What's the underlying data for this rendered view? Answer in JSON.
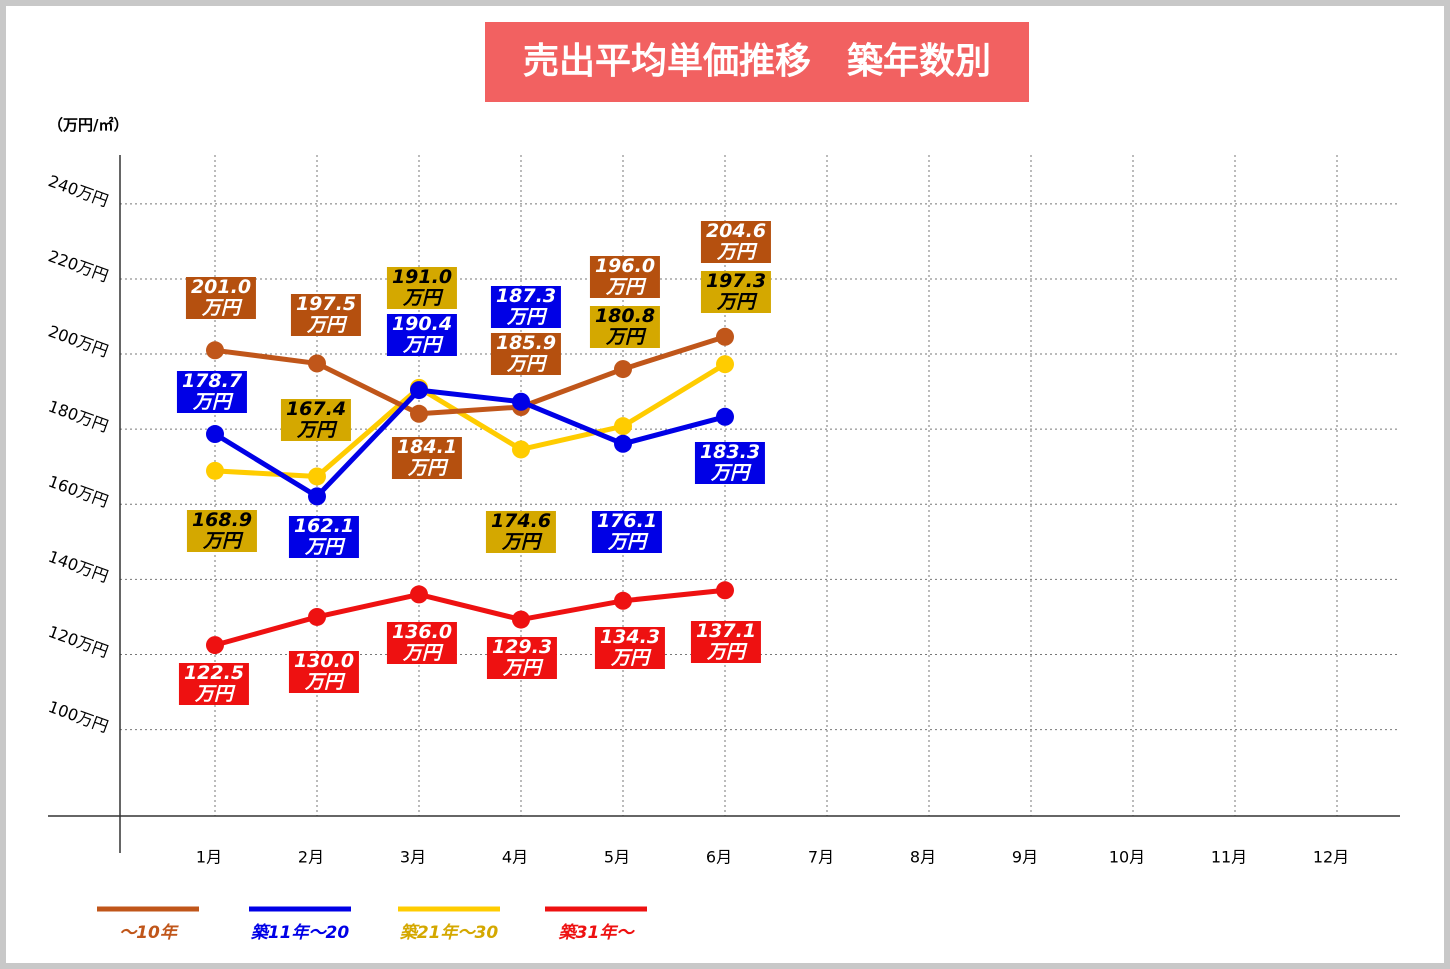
{
  "chart_data": {
    "type": "line",
    "title": "売出平均単価推移　築年数別",
    "y_label": "（万円/㎡）",
    "categories": [
      "1月",
      "2月",
      "3月",
      "4月",
      "5月",
      "6月",
      "7月",
      "8月",
      "9月",
      "10月",
      "11月",
      "12月"
    ],
    "series": [
      {
        "name": "～10年",
        "color": "#c0561a",
        "label_color": "#b5500f",
        "label_text": "#ffffff",
        "values": [
          201.0,
          197.5,
          184.1,
          185.9,
          196.0,
          204.6,
          null,
          null,
          null,
          null,
          null,
          null
        ],
        "value_labels": [
          "201.0\n万円",
          "197.5\n万円",
          "184.1\n万円",
          "185.9\n万円",
          "196.0\n万円",
          "204.6\n万円",
          null,
          null,
          null,
          null,
          null,
          null
        ]
      },
      {
        "name": "築11年～20",
        "color": "#0000e6",
        "label_color": "#0000e6",
        "label_text": "#ffffff",
        "values": [
          178.7,
          162.1,
          190.4,
          187.3,
          176.1,
          183.3,
          null,
          null,
          null,
          null,
          null,
          null
        ],
        "value_labels": [
          "178.7\n万円",
          "162.1\n万円",
          "190.4\n万円",
          "187.3\n万円",
          "176.1\n万円",
          "183.3\n万円",
          null,
          null,
          null,
          null,
          null,
          null
        ]
      },
      {
        "name": "築21年～30",
        "color": "#ffcc00",
        "label_color": "#d4a800",
        "label_text": "#000000",
        "values": [
          168.9,
          167.4,
          191.0,
          174.6,
          180.8,
          197.3,
          null,
          null,
          null,
          null,
          null,
          null
        ],
        "value_labels": [
          "168.9\n万円",
          "167.4\n万円",
          "191.0\n万円",
          "174.6\n万円",
          "180.8\n万円",
          "197.3\n万円",
          null,
          null,
          null,
          null,
          null,
          null
        ]
      },
      {
        "name": "築31年～",
        "color": "#ee1111",
        "label_color": "#ee1111",
        "label_text": "#ffffff",
        "values": [
          122.5,
          130.0,
          136.0,
          129.3,
          134.3,
          137.1,
          null,
          null,
          null,
          null,
          null,
          null
        ],
        "value_labels": [
          "122.5\n万円",
          "130.0\n万円",
          "136.0\n万円",
          "129.3\n万円",
          "134.3\n万円",
          "137.1\n万円",
          null,
          null,
          null,
          null,
          null,
          null
        ]
      }
    ],
    "ylim": [
      77,
      253
    ],
    "yticks": [
      {
        "value": 100,
        "label": "100万円"
      },
      {
        "value": 120,
        "label": "120万円"
      },
      {
        "value": 140,
        "label": "140万円"
      },
      {
        "value": 160,
        "label": "160万円"
      },
      {
        "value": 180,
        "label": "180万円"
      },
      {
        "value": 200,
        "label": "200万円"
      },
      {
        "value": 220,
        "label": "220万円"
      },
      {
        "value": 240,
        "label": "240万円"
      }
    ],
    "grid": true
  }
}
